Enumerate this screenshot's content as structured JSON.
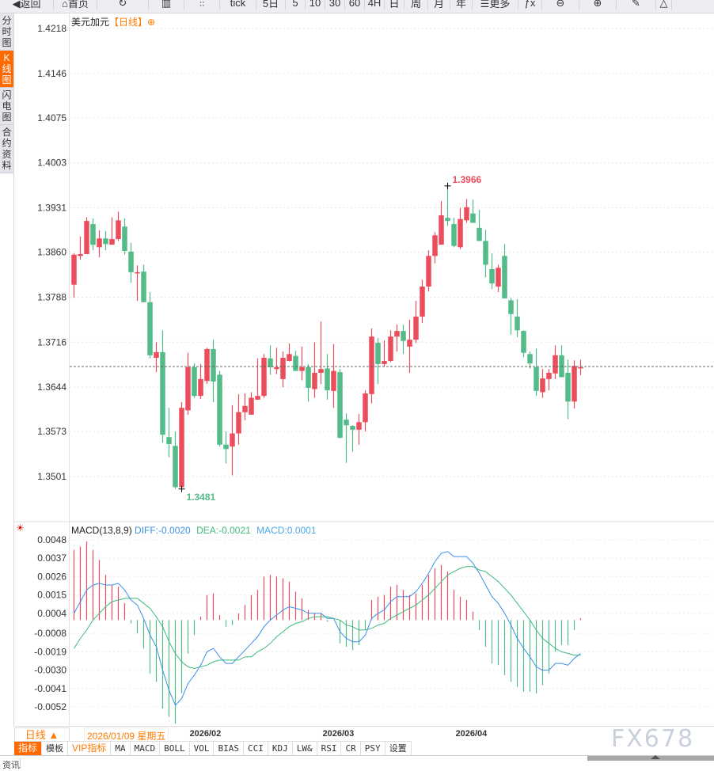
{
  "toolbar": {
    "items": [
      {
        "label": "◀返回",
        "w": 68
      },
      {
        "label": "⌂首页",
        "w": 55
      },
      {
        "label": "↻",
        "w": 65
      },
      {
        "label": "▥",
        "w": 45
      },
      {
        "label": "⫶⫶",
        "w": 45
      },
      {
        "label": "tick",
        "w": 46
      },
      {
        "label": "5日",
        "w": 37
      },
      {
        "label": "5",
        "w": 25
      },
      {
        "label": "10",
        "w": 25
      },
      {
        "label": "30",
        "w": 25
      },
      {
        "label": "60",
        "w": 25
      },
      {
        "label": "4H",
        "w": 25
      },
      {
        "label": "日",
        "w": 25
      },
      {
        "label": "周",
        "w": 30
      },
      {
        "label": "月",
        "w": 28
      },
      {
        "label": "年",
        "w": 28
      },
      {
        "label": "☰更多",
        "w": 58
      },
      {
        "label": "ƒx",
        "w": 30
      },
      {
        "label": "⊖",
        "w": 47
      },
      {
        "label": "⊕",
        "w": 47
      },
      {
        "label": "✎",
        "w": 50
      },
      {
        "label": "△",
        "w": 20
      }
    ]
  },
  "left_tabs": [
    {
      "label": "分时图",
      "active": false
    },
    {
      "label": "K线图",
      "active": true
    },
    {
      "label": "闪电图",
      "active": false
    },
    {
      "label": "合约资料",
      "active": false
    }
  ],
  "chart_title": {
    "symbol": "美元加元",
    "period": "【日线】",
    "icon": "⊕"
  },
  "colors": {
    "up": "#ec4d5c",
    "down": "#52bb88",
    "diff": "#3d8fe8",
    "dea": "#3dbb7a",
    "current": "#1e6fe0"
  },
  "chart_data": [
    {
      "type": "candlestick",
      "title": "美元加元 日线",
      "ylim": [
        1.3501,
        1.4218
      ],
      "yticks": [
        "1.4218",
        "1.4146",
        "1.4075",
        "1.4003",
        "1.3931",
        "1.3860",
        "1.3788",
        "1.3716",
        "1.3644",
        "1.3573",
        "1.3501"
      ],
      "current_price": 1.3677,
      "high_label": "1.3966",
      "high_index": 59,
      "low_label": "1.3481",
      "low_index": 17,
      "xlabels": [
        {
          "label": "2026/02",
          "index": 18
        },
        {
          "label": "2026/03",
          "index": 39
        },
        {
          "label": "2026/04",
          "index": 60
        }
      ],
      "ohlc": [
        [
          1.3808,
          1.3856,
          1.3858,
          1.3787
        ],
        [
          1.3854,
          1.3857,
          1.3885,
          1.3848
        ],
        [
          1.3857,
          1.391,
          1.3916,
          1.3857
        ],
        [
          1.3905,
          1.3872,
          1.3914,
          1.3863
        ],
        [
          1.3868,
          1.3882,
          1.3895,
          1.3852
        ],
        [
          1.3882,
          1.3873,
          1.3894,
          1.3863
        ],
        [
          1.3872,
          1.3881,
          1.3916,
          1.3872
        ],
        [
          1.3881,
          1.3911,
          1.3925,
          1.3878
        ],
        [
          1.3901,
          1.3862,
          1.3914,
          1.3856
        ],
        [
          1.3861,
          1.3828,
          1.3875,
          1.3811
        ],
        [
          1.3826,
          1.3828,
          1.3839,
          1.3782
        ],
        [
          1.3829,
          1.378,
          1.384,
          1.378
        ],
        [
          1.378,
          1.3695,
          1.3796,
          1.369
        ],
        [
          1.3691,
          1.37,
          1.3716,
          1.3668
        ],
        [
          1.37,
          1.3568,
          1.3735,
          1.3555
        ],
        [
          1.3564,
          1.3553,
          1.3611,
          1.3532
        ],
        [
          1.355,
          1.3484,
          1.3573,
          1.3481
        ],
        [
          1.3484,
          1.3611,
          1.362,
          1.3481
        ],
        [
          1.3607,
          1.3676,
          1.3699,
          1.36
        ],
        [
          1.3676,
          1.363,
          1.3682,
          1.3627
        ],
        [
          1.363,
          1.3657,
          1.3681,
          1.3625
        ],
        [
          1.3654,
          1.3705,
          1.3707,
          1.3649
        ],
        [
          1.3705,
          1.3653,
          1.372,
          1.362
        ],
        [
          1.3664,
          1.3552,
          1.367,
          1.3549
        ],
        [
          1.3552,
          1.3545,
          1.3573,
          1.3522
        ],
        [
          1.3549,
          1.357,
          1.3615,
          1.3503
        ],
        [
          1.357,
          1.3604,
          1.3633,
          1.3552
        ],
        [
          1.3604,
          1.3614,
          1.3634,
          1.3591
        ],
        [
          1.36,
          1.3627,
          1.3636,
          1.36
        ],
        [
          1.3624,
          1.363,
          1.369,
          1.3624
        ],
        [
          1.363,
          1.3691,
          1.3697,
          1.3627
        ],
        [
          1.369,
          1.3676,
          1.3711,
          1.3664
        ],
        [
          1.3673,
          1.3676,
          1.3707,
          1.3665
        ],
        [
          1.3657,
          1.3691,
          1.3701,
          1.3644
        ],
        [
          1.3686,
          1.3697,
          1.3714,
          1.3685
        ],
        [
          1.3694,
          1.367,
          1.3702,
          1.367
        ],
        [
          1.367,
          1.3676,
          1.3709,
          1.3655
        ],
        [
          1.3676,
          1.3643,
          1.3681,
          1.3621
        ],
        [
          1.3641,
          1.3667,
          1.3716,
          1.3627
        ],
        [
          1.3667,
          1.3673,
          1.3749,
          1.3649
        ],
        [
          1.3674,
          1.3639,
          1.3697,
          1.3624
        ],
        [
          1.3638,
          1.367,
          1.3713,
          1.3611
        ],
        [
          1.3668,
          1.3563,
          1.3673,
          1.3562
        ],
        [
          1.3592,
          1.3583,
          1.3602,
          1.3523
        ],
        [
          1.3582,
          1.3576,
          1.3583,
          1.3541
        ],
        [
          1.3576,
          1.3588,
          1.3601,
          1.3552
        ],
        [
          1.3588,
          1.3634,
          1.3639,
          1.3573
        ],
        [
          1.3633,
          1.3725,
          1.3738,
          1.3618
        ],
        [
          1.3715,
          1.3681,
          1.3723,
          1.3649
        ],
        [
          1.3681,
          1.3686,
          1.3719,
          1.3677
        ],
        [
          1.3686,
          1.3725,
          1.3735,
          1.3684
        ],
        [
          1.3725,
          1.3734,
          1.3744,
          1.3701
        ],
        [
          1.3734,
          1.3718,
          1.3744,
          1.3697
        ],
        [
          1.3709,
          1.372,
          1.3752,
          1.3667
        ],
        [
          1.372,
          1.3757,
          1.3782,
          1.3715
        ],
        [
          1.3757,
          1.3805,
          1.3816,
          1.3747
        ],
        [
          1.3805,
          1.3854,
          1.3863,
          1.3797
        ],
        [
          1.3854,
          1.3887,
          1.3892,
          1.3842
        ],
        [
          1.3872,
          1.3919,
          1.3942,
          1.3872
        ],
        [
          1.3915,
          1.391,
          1.3966,
          1.3902
        ],
        [
          1.3905,
          1.387,
          1.3915,
          1.3868
        ],
        [
          1.3868,
          1.3913,
          1.3931,
          1.3865
        ],
        [
          1.3911,
          1.3932,
          1.3945,
          1.3907
        ],
        [
          1.3922,
          1.3907,
          1.3944,
          1.3907
        ],
        [
          1.3899,
          1.3878,
          1.3928,
          1.3878
        ],
        [
          1.3878,
          1.384,
          1.3896,
          1.382
        ],
        [
          1.3833,
          1.381,
          1.3858,
          1.3801
        ],
        [
          1.3805,
          1.3835,
          1.384,
          1.3796
        ],
        [
          1.3854,
          1.3786,
          1.3873,
          1.3786
        ],
        [
          1.3783,
          1.3761,
          1.3787,
          1.3728
        ],
        [
          1.3757,
          1.3735,
          1.3785,
          1.3724
        ],
        [
          1.3734,
          1.3699,
          1.3735,
          1.3692
        ],
        [
          1.3697,
          1.3682,
          1.3701,
          1.3674
        ],
        [
          1.3676,
          1.3638,
          1.3706,
          1.363
        ],
        [
          1.3636,
          1.3658,
          1.3673,
          1.3627
        ],
        [
          1.3657,
          1.3667,
          1.3673,
          1.3639
        ],
        [
          1.3666,
          1.3695,
          1.3711,
          1.3657
        ],
        [
          1.3695,
          1.366,
          1.3711,
          1.366
        ],
        [
          1.3667,
          1.3621,
          1.3688,
          1.3593
        ],
        [
          1.3621,
          1.3678,
          1.3687,
          1.361
        ],
        [
          1.3674,
          1.3676,
          1.3688,
          1.3663
        ]
      ]
    },
    {
      "type": "macd",
      "title": "MACD(13,8,9)",
      "diff_label": "DIFF:-0.0020",
      "dea_label": "DEA:-0.0021",
      "macd_label": "MACD:0.0001",
      "ylim": [
        -0.0052,
        0.0048
      ],
      "yticks": [
        "0.0048",
        "0.0037",
        "0.0026",
        "0.0015",
        "0.0004",
        "-0.0008",
        "-0.0019",
        "-0.0030",
        "-0.0041",
        "-0.0052"
      ],
      "hist": [
        0.0042,
        0.0044,
        0.0047,
        0.0042,
        0.0036,
        0.0027,
        0.0021,
        0.002,
        0.001,
        -0.0002,
        -0.0008,
        -0.0017,
        -0.0032,
        -0.0037,
        -0.0053,
        -0.0058,
        -0.0062,
        -0.0044,
        -0.002,
        -0.0009,
        0.0002,
        0.0015,
        0.0016,
        0.0003,
        -0.0004,
        -0.0003,
        0.0004,
        0.0009,
        0.0015,
        0.0018,
        0.0026,
        0.0027,
        0.0026,
        0.0025,
        0.0023,
        0.0017,
        0.0013,
        0.0006,
        0.0004,
        0.0004,
        -0.0001,
        -0.0,
        -0.0014,
        -0.0016,
        -0.0018,
        -0.0015,
        -0.0006,
        0.0012,
        0.0014,
        0.0015,
        0.002,
        0.0021,
        0.0018,
        0.0015,
        0.0016,
        0.0021,
        0.0027,
        0.0031,
        0.0033,
        0.0029,
        0.0018,
        0.0014,
        0.0012,
        0.0005,
        -0.0006,
        -0.0016,
        -0.0026,
        -0.0027,
        -0.0033,
        -0.0037,
        -0.004,
        -0.0043,
        -0.0043,
        -0.0044,
        -0.0039,
        -0.0032,
        -0.0019,
        -0.0015,
        -0.0015,
        -0.0006,
        0.0001
      ],
      "diff": [
        0.0004,
        0.0011,
        0.0018,
        0.0021,
        0.0022,
        0.0021,
        0.0021,
        0.0022,
        0.0018,
        0.0012,
        0.0009,
        0.0001,
        -0.0009,
        -0.0016,
        -0.003,
        -0.0042,
        -0.0051,
        -0.0047,
        -0.0038,
        -0.0033,
        -0.0027,
        -0.0019,
        -0.0017,
        -0.0022,
        -0.0026,
        -0.0026,
        -0.0022,
        -0.0018,
        -0.0014,
        -0.001,
        -0.0004,
        0.0,
        0.0003,
        0.0006,
        0.0008,
        0.0007,
        0.0006,
        0.0004,
        0.0004,
        0.0004,
        0.0001,
        0.0001,
        -0.0007,
        -0.0011,
        -0.0013,
        -0.0013,
        -0.0009,
        0.0001,
        0.0004,
        0.0006,
        0.0011,
        0.0014,
        0.0014,
        0.0014,
        0.0017,
        0.0022,
        0.0028,
        0.0035,
        0.004,
        0.0041,
        0.0038,
        0.0038,
        0.0038,
        0.0034,
        0.0028,
        0.0021,
        0.0014,
        0.001,
        0.0004,
        -0.0003,
        -0.0011,
        -0.0017,
        -0.0022,
        -0.0028,
        -0.003,
        -0.003,
        -0.0026,
        -0.0026,
        -0.0027,
        -0.0023,
        -0.002
      ],
      "dea": [
        -0.0017,
        -0.0011,
        -0.0006,
        0.0,
        0.0004,
        0.0008,
        0.0011,
        0.0012,
        0.0013,
        0.0013,
        0.0013,
        0.001,
        0.0007,
        0.0002,
        -0.0004,
        -0.0013,
        -0.002,
        -0.0025,
        -0.0028,
        -0.0029,
        -0.0028,
        -0.0027,
        -0.0025,
        -0.0024,
        -0.0024,
        -0.0024,
        -0.0024,
        -0.0022,
        -0.0022,
        -0.0019,
        -0.0017,
        -0.0014,
        -0.001,
        -0.0007,
        -0.0004,
        -0.0002,
        -0.0001,
        0.0001,
        0.0002,
        0.0002,
        0.0002,
        0.0001,
        0.0,
        -0.0003,
        -0.0004,
        -0.0006,
        -0.0006,
        -0.0005,
        -0.0003,
        -0.0002,
        0.0001,
        0.0003,
        0.0005,
        0.0007,
        0.0009,
        0.0012,
        0.0015,
        0.0019,
        0.0023,
        0.0027,
        0.0029,
        0.0031,
        0.0032,
        0.0032,
        0.003,
        0.0029,
        0.0026,
        0.0023,
        0.0019,
        0.0015,
        0.001,
        0.0005,
        0.0,
        -0.0006,
        -0.0011,
        -0.0014,
        -0.0017,
        -0.0019,
        -0.002,
        -0.0021,
        -0.0021
      ]
    }
  ],
  "footer": {
    "period_button": "日线 ▲",
    "cursor_date": "2026/01/09 星期五",
    "indicator_tabs": [
      "指标",
      "模板",
      "VIP指标",
      "MA",
      "MACD",
      "BOLL",
      "VOL",
      "BIAS",
      "CCI",
      "KDJ",
      "LW&",
      "RSI",
      "CR",
      "PSY",
      "设置"
    ],
    "watermark": "FX678",
    "bottom_tab": "资讯"
  }
}
